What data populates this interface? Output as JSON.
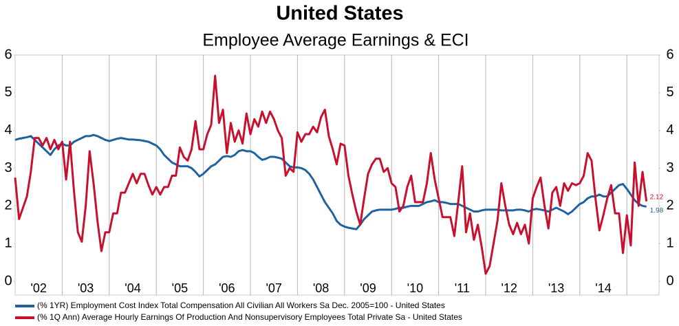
{
  "chart_data": {
    "type": "line",
    "title": "United States",
    "subtitle": "Employee Average Earnings & ECI",
    "categories": [
      null,
      null,
      null,
      null,
      null,
      null,
      "'02",
      null,
      null,
      null,
      null,
      null,
      null,
      null,
      null,
      null,
      null,
      null,
      "'03",
      null,
      null,
      null,
      null,
      null,
      null,
      null,
      null,
      null,
      null,
      null,
      "'04",
      null,
      null,
      null,
      null,
      null,
      null,
      null,
      null,
      null,
      null,
      null,
      "'05",
      null,
      null,
      null,
      null,
      null,
      null,
      null,
      null,
      null,
      null,
      null,
      "'06",
      null,
      null,
      null,
      null,
      null,
      null,
      null,
      null,
      null,
      null,
      null,
      "'07",
      null,
      null,
      null,
      null,
      null,
      null,
      null,
      null,
      null,
      null,
      null,
      "'08",
      null,
      null,
      null,
      null,
      null,
      null,
      null,
      null,
      null,
      null,
      null,
      "'09",
      null,
      null,
      null,
      null,
      null,
      null,
      null,
      null,
      null,
      null,
      null,
      "'10",
      null,
      null,
      null,
      null,
      null,
      null,
      null,
      null,
      null,
      null,
      null,
      "'11",
      null,
      null,
      null,
      null,
      null,
      null,
      null,
      null,
      null,
      null,
      null,
      "'12",
      null,
      null,
      null,
      null,
      null,
      null,
      null,
      null,
      null,
      null,
      null,
      "'13",
      null,
      null,
      null,
      null,
      null,
      null,
      null,
      null,
      null,
      null,
      null,
      "'14",
      null,
      null,
      null,
      null,
      null,
      null,
      null,
      null,
      null,
      null,
      null
    ],
    "series": [
      {
        "name": "(% 1YR) Employment Cost Index Total Compensation All Civilian All Workers Sa Dec. 2005=100 - United States",
        "color": "#1f62a0",
        "values": [
          3.75,
          3.78,
          3.8,
          3.82,
          3.85,
          3.75,
          3.65,
          3.55,
          3.45,
          3.35,
          3.5,
          3.6,
          3.65,
          3.6,
          3.6,
          3.7,
          3.75,
          3.8,
          3.85,
          3.85,
          3.88,
          3.85,
          3.8,
          3.75,
          3.72,
          3.75,
          3.78,
          3.8,
          3.78,
          3.76,
          3.76,
          3.75,
          3.74,
          3.72,
          3.7,
          3.65,
          3.6,
          3.5,
          3.35,
          3.25,
          3.15,
          3.1,
          3.05,
          3.05,
          3.05,
          3.0,
          2.9,
          2.78,
          2.85,
          2.95,
          3.05,
          3.1,
          3.2,
          3.3,
          3.32,
          3.3,
          3.35,
          3.45,
          3.48,
          3.45,
          3.45,
          3.4,
          3.3,
          3.22,
          3.25,
          3.3,
          3.3,
          3.28,
          3.25,
          3.15,
          3.05,
          3.02,
          3.02,
          3.0,
          2.95,
          2.85,
          2.7,
          2.5,
          2.3,
          2.1,
          1.95,
          1.8,
          1.6,
          1.5,
          1.45,
          1.42,
          1.4,
          1.38,
          1.5,
          1.65,
          1.75,
          1.85,
          1.88,
          1.9,
          1.9,
          1.9,
          1.9,
          1.92,
          1.95,
          1.95,
          1.98,
          2.0,
          2.0,
          2.0,
          2.05,
          2.1,
          2.12,
          2.15,
          2.1,
          2.1,
          2.08,
          2.05,
          2.05,
          2.05,
          2.0,
          1.95,
          1.9,
          1.85,
          1.85,
          1.88,
          1.9,
          1.9,
          1.9,
          1.9,
          1.88,
          1.88,
          1.88,
          1.88,
          1.9,
          1.9,
          1.88,
          1.85,
          1.9,
          1.92,
          1.9,
          1.88,
          1.85,
          1.9,
          1.95,
          1.9,
          1.85,
          1.78,
          1.85,
          1.95,
          2.05,
          2.1,
          2.2,
          2.25,
          2.25,
          2.3,
          2.25,
          2.25,
          2.35,
          2.45,
          2.55,
          2.58,
          2.45,
          2.3,
          2.15,
          2.05,
          2.0,
          1.98
        ]
      },
      {
        "name": "(% 1Q Ann) Average Hourly Earnings Of Production And Nonsupervisory Employees Total Private Sa  - United States",
        "color": "#c8102e",
        "values": [
          2.75,
          1.65,
          1.95,
          2.25,
          2.9,
          3.8,
          3.8,
          3.6,
          3.8,
          3.5,
          3.75,
          3.5,
          3.7,
          2.7,
          3.7,
          2.4,
          1.3,
          1.05,
          2.0,
          3.45,
          2.6,
          1.6,
          0.8,
          1.3,
          1.3,
          1.8,
          1.8,
          2.35,
          2.35,
          2.6,
          2.85,
          2.6,
          2.85,
          2.85,
          2.55,
          2.3,
          2.5,
          2.3,
          2.5,
          2.5,
          2.8,
          2.8,
          3.55,
          3.3,
          3.2,
          3.5,
          4.25,
          3.5,
          3.5,
          3.9,
          4.15,
          5.45,
          4.2,
          4.55,
          3.4,
          4.2,
          3.7,
          4.0,
          3.65,
          4.45,
          3.9,
          4.3,
          4.1,
          4.5,
          4.2,
          4.5,
          4.3,
          4.0,
          3.8,
          2.8,
          3.0,
          2.9,
          3.95,
          3.7,
          3.9,
          3.9,
          4.1,
          3.95,
          4.35,
          4.55,
          3.85,
          3.5,
          3.1,
          3.65,
          3.6,
          2.8,
          2.3,
          1.85,
          1.5,
          2.2,
          2.85,
          3.1,
          3.25,
          3.25,
          2.9,
          3.0,
          2.6,
          2.5,
          1.85,
          2.0,
          2.5,
          2.8,
          2.1,
          2.1,
          2.1,
          2.6,
          3.4,
          2.7,
          2.2,
          1.7,
          1.7,
          1.7,
          1.2,
          2.1,
          3.05,
          1.3,
          1.8,
          1.1,
          1.5,
          0.9,
          0.2,
          0.4,
          1.0,
          1.6,
          2.6,
          2.0,
          1.5,
          1.25,
          1.55,
          1.25,
          1.5,
          1.0,
          2.2,
          2.5,
          2.75,
          2.0,
          1.4,
          2.35,
          2.5,
          2.0,
          2.6,
          2.4,
          2.6,
          2.55,
          2.6,
          2.8,
          3.4,
          3.2,
          2.2,
          1.35,
          1.75,
          2.2,
          2.55,
          1.8,
          1.8,
          0.75,
          1.75,
          0.95,
          3.15,
          2.0,
          2.9,
          2.12
        ]
      }
    ],
    "ylim": [
      0,
      6
    ],
    "yticks": [
      0,
      1,
      2,
      3,
      4,
      5,
      6
    ],
    "y2lim": [
      0,
      6
    ],
    "y2ticks": [
      0,
      1,
      2,
      3,
      4,
      5,
      6
    ],
    "grid": "x",
    "legend": "bottom"
  }
}
